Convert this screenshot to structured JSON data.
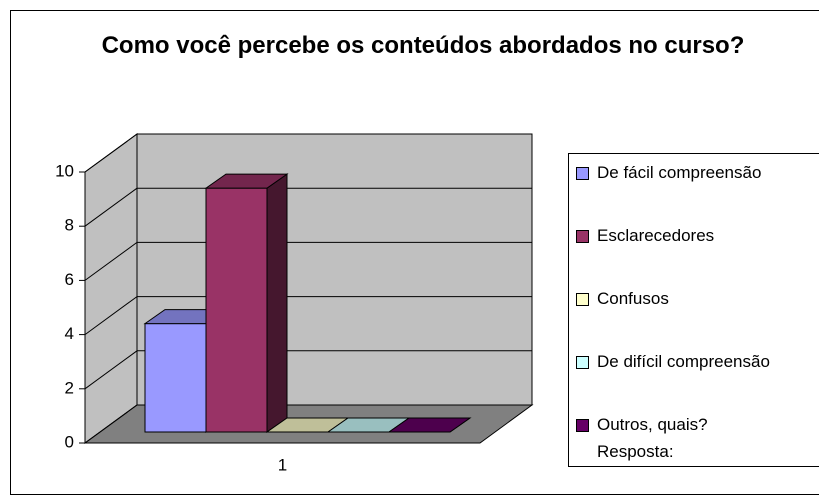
{
  "chart_data": {
    "type": "bar3d",
    "title": "Como você percebe os conteúdos abordados no curso?",
    "categories": [
      "1"
    ],
    "series": [
      {
        "name": "De fácil compreensão",
        "color": "#9999ff",
        "values": [
          4
        ]
      },
      {
        "name": "Esclarecedores",
        "color": "#993366",
        "values": [
          9
        ]
      },
      {
        "name": "Confusos",
        "color": "#ffffcc",
        "values": [
          0
        ]
      },
      {
        "name": "De difícil compreensão",
        "color": "#ccffff",
        "values": [
          0
        ]
      },
      {
        "name": "Outros, quais? Resposta:",
        "color": "#660066",
        "values": [
          0
        ]
      }
    ],
    "ylim": [
      0,
      10
    ],
    "yticks": [
      0,
      2,
      4,
      6,
      8,
      10
    ],
    "grid": true,
    "legend": "right"
  }
}
